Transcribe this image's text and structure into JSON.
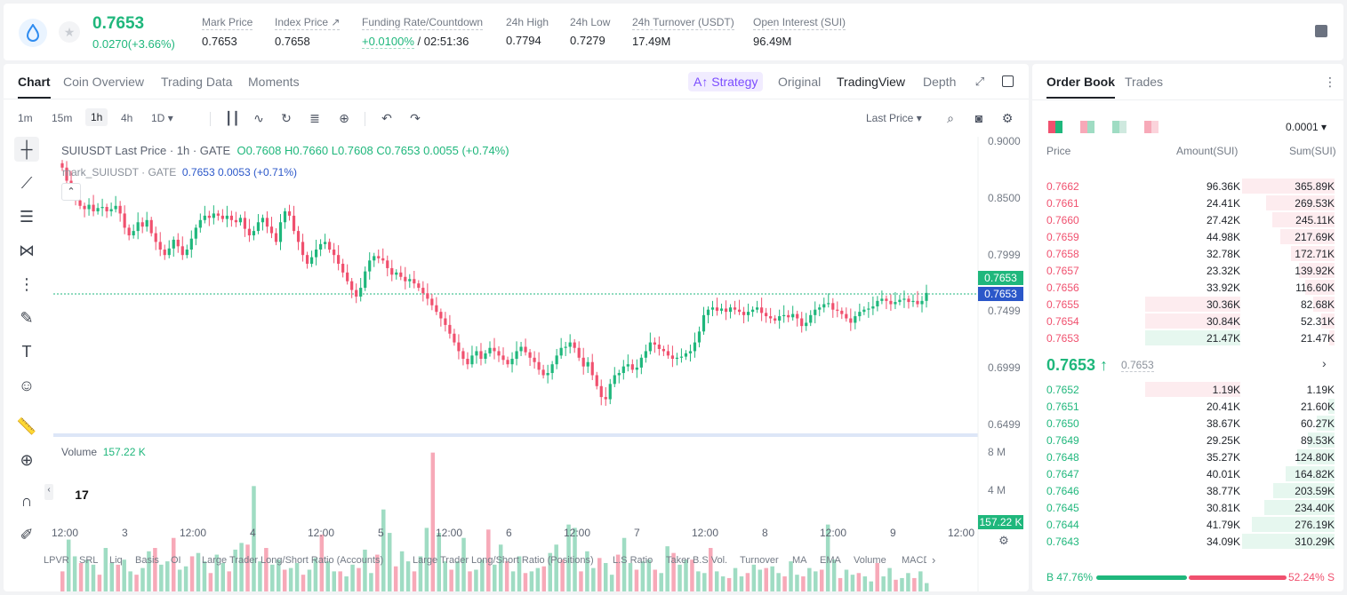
{
  "header": {
    "last_price": "0.7653",
    "change": "0.0270(+3.66%)",
    "stats": [
      {
        "label": "Mark Price",
        "value": "0.7653"
      },
      {
        "label": "Index Price ↗",
        "value": "0.7658"
      },
      {
        "label": "Funding Rate/Countdown",
        "value_green": "+0.0100%",
        "value": " / 02:51:36"
      },
      {
        "label": "24h High",
        "value": "0.7794"
      },
      {
        "label": "24h Low",
        "value": "0.7279"
      },
      {
        "label": "24h Turnover (USDT)",
        "value": "17.49M"
      },
      {
        "label": "Open Interest (SUI)",
        "value": "96.49M"
      }
    ]
  },
  "chart_tabs": [
    "Chart",
    "Coin Overview",
    "Trading Data",
    "Moments"
  ],
  "view": {
    "strategy": "Strategy",
    "options": [
      "Original",
      "TradingView",
      "Depth"
    ],
    "active": "TradingView"
  },
  "timeframes": [
    "1m",
    "15m",
    "1h",
    "4h",
    "1D"
  ],
  "active_timeframe": "1h",
  "last_price_select": "Last Price",
  "legend": {
    "symbol": "SUIUSDT Last Price · 1h · GATE",
    "ohlc": "O0.7608  H0.7660  L0.7608  C0.7653  0.0055 (+0.74%)",
    "mark": "mark_SUIUSDT · GATE",
    "mark_values": "0.7653  0.0053  (+0.71%)"
  },
  "volume_legend": {
    "label": "Volume",
    "value": "157.22 K"
  },
  "price_axis": [
    "0.9000",
    "0.8500",
    "0.7999",
    "0.7499",
    "0.6999",
    "0.6499"
  ],
  "volume_axis": [
    "8 M",
    "4 M"
  ],
  "price_tags": {
    "last": "0.7653",
    "mark": "0.7653",
    "volume": "157.22 K"
  },
  "x_labels": [
    "12:00",
    "3",
    "12:00",
    "4",
    "12:00",
    "5",
    "12:00",
    "6",
    "12:00",
    "7",
    "12:00",
    "8",
    "12:00",
    "9",
    "12:00"
  ],
  "indicators": [
    "LPVR",
    "SRL",
    "Liq",
    "Basis",
    "OI",
    "Large Trader Long/Short Ratio (Accounts)",
    "Large Trader Long/Short Ratio (Positions)",
    "L.S Ratio",
    "Taker B.S Vol.",
    "Turnover",
    "MA",
    "EMA",
    "Volume",
    "MACD"
  ],
  "chart_data": {
    "type": "candlestick",
    "series_name": "SUIUSDT Last Price",
    "ylim": [
      0.64,
      0.905
    ],
    "close": [
      0.88,
      0.868,
      0.86,
      0.85,
      0.845,
      0.842,
      0.846,
      0.84,
      0.843,
      0.844,
      0.84,
      0.842,
      0.845,
      0.838,
      0.825,
      0.818,
      0.822,
      0.83,
      0.826,
      0.832,
      0.82,
      0.812,
      0.805,
      0.8,
      0.806,
      0.814,
      0.808,
      0.8,
      0.805,
      0.815,
      0.825,
      0.832,
      0.836,
      0.834,
      0.838,
      0.836,
      0.833,
      0.836,
      0.832,
      0.83,
      0.834,
      0.824,
      0.818,
      0.822,
      0.83,
      0.834,
      0.826,
      0.82,
      0.812,
      0.83,
      0.84,
      0.836,
      0.822,
      0.812,
      0.8,
      0.792,
      0.798,
      0.805,
      0.81,
      0.812,
      0.805,
      0.8,
      0.792,
      0.784,
      0.776,
      0.768,
      0.762,
      0.77,
      0.785,
      0.795,
      0.799,
      0.797,
      0.795,
      0.788,
      0.782,
      0.784,
      0.78,
      0.776,
      0.778,
      0.774,
      0.77,
      0.765,
      0.76,
      0.754,
      0.748,
      0.742,
      0.736,
      0.728,
      0.72,
      0.712,
      0.705,
      0.7,
      0.708,
      0.712,
      0.705,
      0.71,
      0.715,
      0.712,
      0.708,
      0.704,
      0.7,
      0.705,
      0.712,
      0.716,
      0.711,
      0.706,
      0.702,
      0.695,
      0.69,
      0.692,
      0.7,
      0.708,
      0.715,
      0.716,
      0.72,
      0.715,
      0.706,
      0.698,
      0.702,
      0.69,
      0.68,
      0.67,
      0.668,
      0.682,
      0.69,
      0.692,
      0.698,
      0.7,
      0.695,
      0.697,
      0.706,
      0.712,
      0.72,
      0.718,
      0.714,
      0.712,
      0.708,
      0.705,
      0.706,
      0.707,
      0.71,
      0.712,
      0.72,
      0.73,
      0.745,
      0.75,
      0.752,
      0.749,
      0.751,
      0.748,
      0.752,
      0.75,
      0.748,
      0.745,
      0.748,
      0.75,
      0.752,
      0.747,
      0.744,
      0.742,
      0.74,
      0.744,
      0.745,
      0.743,
      0.746,
      0.742,
      0.735,
      0.738,
      0.745,
      0.75,
      0.752,
      0.755,
      0.756,
      0.75,
      0.749,
      0.746,
      0.742,
      0.738,
      0.744,
      0.748,
      0.75,
      0.751,
      0.753,
      0.758,
      0.76,
      0.758,
      0.755,
      0.757,
      0.759,
      0.76,
      0.757,
      0.758,
      0.755,
      0.758,
      0.7653
    ],
    "volume_peak_k": [
      1200,
      3100,
      2100,
      1700,
      1900,
      1600,
      1000,
      2600,
      1700,
      1600,
      1900,
      1200,
      1000,
      1400,
      2400,
      2600,
      1600,
      1800,
      3200,
      1300,
      1500,
      2100,
      2300,
      1800,
      1100,
      2200,
      1700,
      1200,
      2500,
      2900,
      2800,
      6300,
      1800,
      2600,
      1600,
      1900,
      1300,
      1400,
      1700,
      1000,
      1300,
      2000,
      3400,
      1800,
      1200,
      1200,
      900,
      1600,
      1400,
      2500,
      1100,
      2200,
      4900,
      3500,
      1500,
      2400,
      1800,
      1200,
      2100,
      3800,
      8300,
      3500,
      1800,
      1300,
      1800,
      3200,
      1200,
      1300,
      1900,
      3700,
      1600,
      2800,
      1800,
      1200,
      2100,
      1100,
      1200,
      1400,
      1500,
      2300,
      2800,
      1900,
      4000,
      3800,
      1200,
      2400,
      1400,
      2000,
      1700,
      1000,
      2200,
      3200,
      1700,
      1300,
      1800,
      1900,
      1300,
      1100,
      2700,
      2300,
      1600,
      1900,
      1900,
      1200,
      1100,
      2600,
      1200,
      900,
      800,
      1400,
      900,
      1100,
      1600,
      1300,
      1400,
      1500,
      1100,
      900,
      1800,
      1000,
      900,
      1400,
      1200,
      1300,
      4000,
      1900,
      800,
      1300,
      1000,
      1100,
      900,
      600,
      1700,
      900,
      1400,
      700,
      800,
      1100,
      800,
      1200,
      500
    ]
  },
  "order_book": {
    "tabs": [
      "Order Book",
      "Trades"
    ],
    "precision": "0.0001",
    "headers": [
      "Price",
      "Amount(SUI)",
      "Sum(SUI)"
    ],
    "asks": [
      {
        "price": "0.7662",
        "amount": "96.36K",
        "sum": "365.89K",
        "depth": 1.0,
        "amount_depth": 0
      },
      {
        "price": "0.7661",
        "amount": "24.41K",
        "sum": "269.53K",
        "depth": 0.74,
        "amount_depth": 0
      },
      {
        "price": "0.7660",
        "amount": "27.42K",
        "sum": "245.11K",
        "depth": 0.67,
        "amount_depth": 0
      },
      {
        "price": "0.7659",
        "amount": "44.98K",
        "sum": "217.69K",
        "depth": 0.59,
        "amount_depth": 0
      },
      {
        "price": "0.7658",
        "amount": "32.78K",
        "sum": "172.71K",
        "depth": 0.47,
        "amount_depth": 0
      },
      {
        "price": "0.7657",
        "amount": "23.32K",
        "sum": "139.92K",
        "depth": 0.38,
        "amount_depth": 0
      },
      {
        "price": "0.7656",
        "amount": "33.92K",
        "sum": "116.60K",
        "depth": 0.32,
        "amount_depth": 0
      },
      {
        "price": "0.7655",
        "amount": "30.36K",
        "sum": "82.68K",
        "depth": 0.23,
        "amount_depth": 0.94
      },
      {
        "price": "0.7654",
        "amount": "30.84K",
        "sum": "52.31K",
        "depth": 0.14,
        "amount_depth": 0.94
      },
      {
        "price": "0.7653",
        "amount": "21.47K",
        "sum": "21.47K",
        "depth": 0.06,
        "amount_depth": 0.94,
        "green": true
      }
    ],
    "mid_price": "0.7653 ↑",
    "mid_mark": "0.7653",
    "bids": [
      {
        "price": "0.7652",
        "amount": "1.19K",
        "sum": "1.19K",
        "depth": 0.0,
        "amount_depth": 0.94,
        "red": true
      },
      {
        "price": "0.7651",
        "amount": "20.41K",
        "sum": "21.60K",
        "depth": 0.07,
        "amount_depth": 0
      },
      {
        "price": "0.7650",
        "amount": "38.67K",
        "sum": "60.27K",
        "depth": 0.19,
        "amount_depth": 0
      },
      {
        "price": "0.7649",
        "amount": "29.25K",
        "sum": "89.53K",
        "depth": 0.29,
        "amount_depth": 0
      },
      {
        "price": "0.7648",
        "amount": "35.27K",
        "sum": "124.80K",
        "depth": 0.4,
        "amount_depth": 0
      },
      {
        "price": "0.7647",
        "amount": "40.01K",
        "sum": "164.82K",
        "depth": 0.53,
        "amount_depth": 0
      },
      {
        "price": "0.7646",
        "amount": "38.77K",
        "sum": "203.59K",
        "depth": 0.66,
        "amount_depth": 0
      },
      {
        "price": "0.7645",
        "amount": "30.81K",
        "sum": "234.40K",
        "depth": 0.76,
        "amount_depth": 0
      },
      {
        "price": "0.7644",
        "amount": "41.79K",
        "sum": "276.19K",
        "depth": 0.89,
        "amount_depth": 0
      },
      {
        "price": "0.7643",
        "amount": "34.09K",
        "sum": "310.29K",
        "depth": 1.0,
        "amount_depth": 0
      }
    ],
    "buy_ratio": "B 47.76%",
    "sell_ratio": "52.24% S",
    "buy_fraction": 0.4776
  },
  "colors": {
    "up": "#1fb77c",
    "down": "#f0506e",
    "accent": "#7b4dff",
    "mark": "#2b57c9"
  }
}
